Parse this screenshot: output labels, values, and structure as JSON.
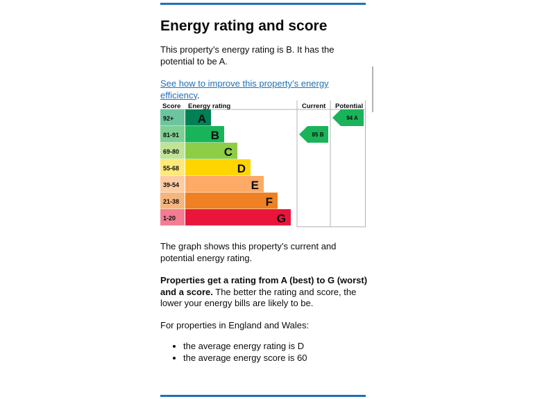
{
  "heading": "Energy rating and score",
  "intro": "This property’s energy rating is B. It has the potential to be A.",
  "improve_link": "See how to improve this property’s energy efficiency",
  "improve_link_suffix": ".",
  "graph_text": "The graph shows this property’s current and potential energy rating.",
  "ratings_bold": "Properties get a rating from A (best) to G (worst) and a score.",
  "ratings_rest": " The better the rating and score, the lower your energy bills are likely to be.",
  "region_text": "For properties in England and Wales:",
  "bullets": [
    "the average energy rating is D",
    "the average energy score is 60"
  ],
  "chart_data": {
    "type": "table",
    "headers": {
      "score": "Score",
      "rating": "Energy rating",
      "current": "Current",
      "potential": "Potential"
    },
    "bands": [
      {
        "letter": "A",
        "range": "92+",
        "color": "#008054",
        "score_bg": "#6cc59f"
      },
      {
        "letter": "B",
        "range": "81-91",
        "color": "#19b459",
        "score_bg": "#7fcf94"
      },
      {
        "letter": "C",
        "range": "69-80",
        "color": "#8dce46",
        "score_bg": "#c1e396"
      },
      {
        "letter": "D",
        "range": "55-68",
        "color": "#ffd500",
        "score_bg": "#ffe978"
      },
      {
        "letter": "E",
        "range": "39-54",
        "color": "#fcaa65",
        "score_bg": "#fdcca3"
      },
      {
        "letter": "F",
        "range": "21-38",
        "color": "#ef8023",
        "score_bg": "#f6b57d"
      },
      {
        "letter": "G",
        "range": "1-20",
        "color": "#e9153b",
        "score_bg": "#f27d92"
      }
    ],
    "current": {
      "score": 85,
      "band": "B",
      "label": "85 B",
      "color": "#19b459"
    },
    "potential": {
      "score": 94,
      "band": "A",
      "label": "94 A",
      "color": "#19b459"
    }
  }
}
